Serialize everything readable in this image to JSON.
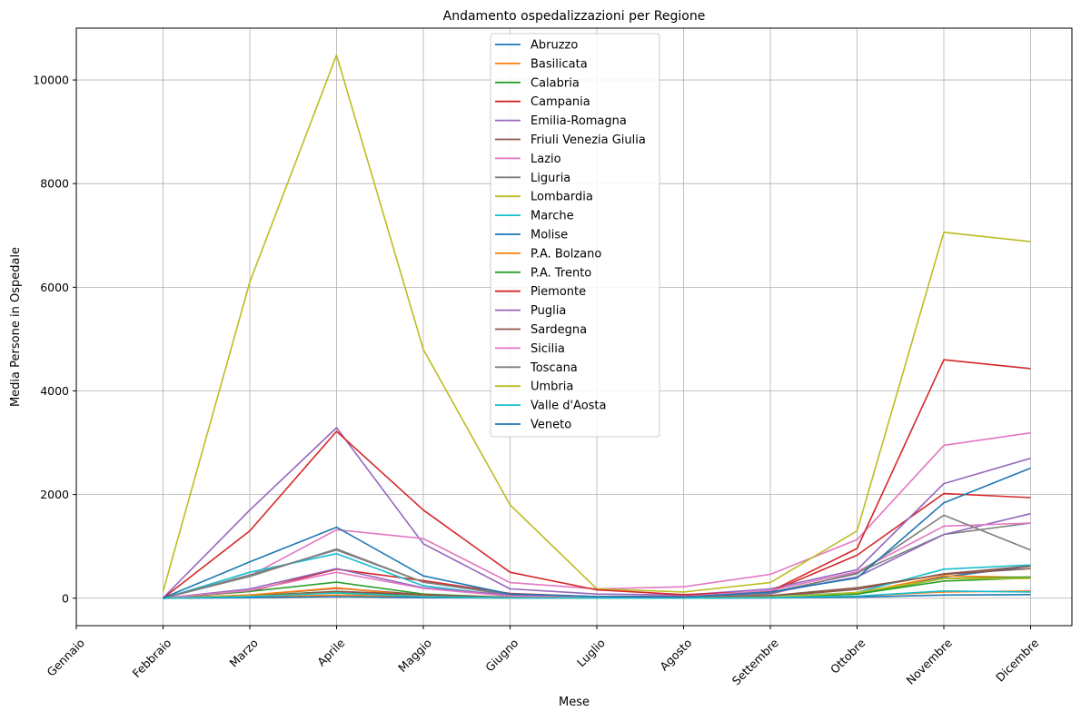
{
  "chart_data": {
    "type": "line",
    "title": "Andamento ospedalizzazioni per Regione",
    "xlabel": "Mese",
    "ylabel": "Media Persone in Ospedale",
    "categories": [
      "Gennaio",
      "Febbraio",
      "Marzo",
      "Aprile",
      "Maggio",
      "Giugno",
      "Luglio",
      "Agosto",
      "Settembre",
      "Ottobre",
      "Novembre",
      "Dicembre"
    ],
    "ylim": [
      -530,
      11000
    ],
    "yticks": [
      0,
      2000,
      4000,
      6000,
      8000,
      10000
    ],
    "grid": true,
    "legend_position": "top-center",
    "series": [
      {
        "name": "Abruzzo",
        "color": "#1f77b4",
        "values": [
          null,
          5,
          30,
          120,
          50,
          15,
          5,
          5,
          20,
          100,
          410,
          620
        ]
      },
      {
        "name": "Basilicata",
        "color": "#ff7f0e",
        "values": [
          null,
          0,
          20,
          60,
          30,
          5,
          3,
          3,
          10,
          40,
          120,
          140
        ]
      },
      {
        "name": "Calabria",
        "color": "#2ca02c",
        "values": [
          null,
          0,
          50,
          130,
          60,
          15,
          5,
          5,
          20,
          80,
          330,
          390
        ]
      },
      {
        "name": "Campania",
        "color": "#d62728",
        "values": [
          null,
          0,
          130,
          560,
          340,
          90,
          30,
          40,
          120,
          830,
          2020,
          1940
        ]
      },
      {
        "name": "Emilia-Romagna",
        "color": "#9467bd",
        "values": [
          null,
          5,
          1700,
          3290,
          1050,
          180,
          80,
          60,
          180,
          550,
          2210,
          2700
        ]
      },
      {
        "name": "Friuli Venezia Giulia",
        "color": "#8c564b",
        "values": [
          null,
          0,
          60,
          190,
          70,
          10,
          5,
          5,
          30,
          170,
          470,
          620
        ]
      },
      {
        "name": "Lazio",
        "color": "#e377c2",
        "values": [
          null,
          5,
          430,
          1320,
          1150,
          300,
          180,
          220,
          460,
          1130,
          2950,
          3190
        ]
      },
      {
        "name": "Liguria",
        "color": "#7f7f7f",
        "values": [
          null,
          0,
          420,
          950,
          310,
          60,
          20,
          15,
          80,
          490,
          1230,
          1450
        ]
      },
      {
        "name": "Lombardia",
        "color": "#bcbd22",
        "values": [
          null,
          130,
          6100,
          10480,
          4800,
          1800,
          180,
          120,
          300,
          1300,
          7060,
          6880
        ]
      },
      {
        "name": "Marche",
        "color": "#17becf",
        "values": [
          null,
          0,
          500,
          860,
          240,
          40,
          15,
          10,
          30,
          110,
          560,
          640
        ]
      },
      {
        "name": "Molise",
        "color": "#1f77b4",
        "values": [
          null,
          0,
          10,
          30,
          10,
          3,
          1,
          1,
          5,
          20,
          60,
          70
        ]
      },
      {
        "name": "P.A. Bolzano",
        "color": "#ff7f0e",
        "values": [
          null,
          0,
          60,
          200,
          40,
          10,
          5,
          5,
          15,
          100,
          430,
          400
        ]
      },
      {
        "name": "P.A. Trento",
        "color": "#2ca02c",
        "values": [
          null,
          0,
          130,
          310,
          80,
          15,
          5,
          5,
          20,
          80,
          380,
          410
        ]
      },
      {
        "name": "Piemonte",
        "color": "#d62728",
        "values": [
          null,
          0,
          1300,
          3220,
          1700,
          500,
          160,
          70,
          130,
          960,
          4600,
          4430
        ]
      },
      {
        "name": "Puglia",
        "color": "#9467bd",
        "values": [
          null,
          0,
          180,
          570,
          200,
          60,
          30,
          30,
          100,
          410,
          1230,
          1630
        ]
      },
      {
        "name": "Sardegna",
        "color": "#8c564b",
        "values": [
          null,
          0,
          40,
          130,
          70,
          10,
          5,
          5,
          50,
          200,
          460,
          570
        ]
      },
      {
        "name": "Sicilia",
        "color": "#e377c2",
        "values": [
          null,
          0,
          150,
          500,
          190,
          40,
          20,
          30,
          150,
          510,
          1390,
          1450
        ]
      },
      {
        "name": "Toscana",
        "color": "#7f7f7f",
        "values": [
          null,
          0,
          450,
          930,
          310,
          80,
          30,
          20,
          110,
          470,
          1600,
          930
        ]
      },
      {
        "name": "Umbria",
        "color": "#bcbd22",
        "values": [
          null,
          0,
          40,
          100,
          30,
          5,
          5,
          5,
          20,
          110,
          380,
          380
        ]
      },
      {
        "name": "Valle d'Aosta",
        "color": "#17becf",
        "values": [
          null,
          0,
          30,
          100,
          30,
          5,
          2,
          2,
          10,
          40,
          140,
          120
        ]
      },
      {
        "name": "Veneto",
        "color": "#1f77b4",
        "values": [
          null,
          5,
          700,
          1370,
          430,
          80,
          30,
          20,
          120,
          390,
          1840,
          2510
        ]
      }
    ]
  }
}
